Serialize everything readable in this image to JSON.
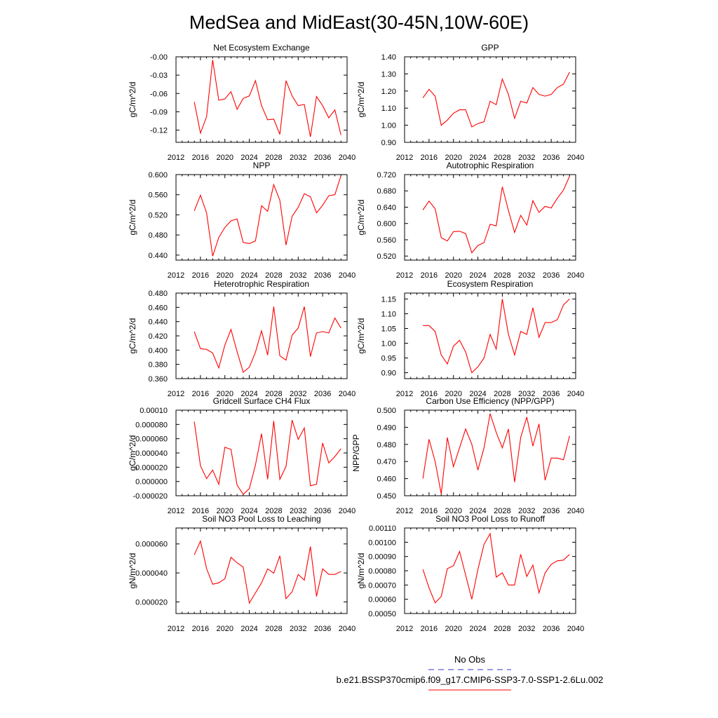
{
  "page_title": "MedSea and MidEast(30-45N,10W-60E)",
  "colors": {
    "series": "#ff0000",
    "obs": "#3333cc",
    "axis": "#000000"
  },
  "legend": {
    "obs_label": "No Obs",
    "model_label": "b.e21.BSSP370cmip6.f09_g17.CMIP6-SSP3-7.0-SSP1-2.6Lu.002"
  },
  "chart_data": [
    {
      "type": "line",
      "title": "Net Ecosystem Exchange",
      "ylabel": "gC/m^2/d",
      "xlim": [
        2012,
        2040
      ],
      "xticks": [
        2012,
        2016,
        2020,
        2024,
        2028,
        2032,
        2036,
        2040
      ],
      "xtick_labels": [
        "2012",
        "2016",
        "2020",
        "2024",
        "2028",
        "2032",
        "2036",
        "2040"
      ],
      "ylim": [
        -0.14,
        0.0
      ],
      "yticks": [
        -0.12,
        -0.09,
        -0.06,
        -0.03,
        0.0
      ],
      "ytick_labels": [
        "-0.12",
        "-0.09",
        "-0.06",
        "-0.03",
        "-0.00"
      ],
      "x": [
        2015,
        2016,
        2017,
        2018,
        2019,
        2020,
        2021,
        2022,
        2023,
        2024,
        2025,
        2026,
        2027,
        2028,
        2029,
        2030,
        2031,
        2032,
        2033,
        2034,
        2035,
        2036,
        2037,
        2038,
        2039
      ],
      "y": [
        -0.074,
        -0.125,
        -0.098,
        -0.005,
        -0.071,
        -0.069,
        -0.057,
        -0.086,
        -0.068,
        -0.064,
        -0.039,
        -0.08,
        -0.103,
        -0.102,
        -0.127,
        -0.039,
        -0.064,
        -0.08,
        -0.078,
        -0.131,
        -0.065,
        -0.08,
        -0.1,
        -0.087,
        -0.128
      ]
    },
    {
      "type": "line",
      "title": "GPP",
      "ylabel": "gC/m^2/d",
      "xlim": [
        2012,
        2040
      ],
      "xticks": [
        2012,
        2016,
        2020,
        2024,
        2028,
        2032,
        2036,
        2040
      ],
      "xtick_labels": [
        "2012",
        "2016",
        "2020",
        "2024",
        "2028",
        "2032",
        "2036",
        "2040"
      ],
      "ylim": [
        0.9,
        1.4
      ],
      "yticks": [
        0.9,
        1.0,
        1.1,
        1.2,
        1.3,
        1.4
      ],
      "ytick_labels": [
        "0.90",
        "1.00",
        "1.10",
        "1.20",
        "1.30",
        "1.40"
      ],
      "x": [
        2015,
        2016,
        2017,
        2018,
        2019,
        2020,
        2021,
        2022,
        2023,
        2024,
        2025,
        2026,
        2027,
        2028,
        2029,
        2030,
        2031,
        2032,
        2033,
        2034,
        2035,
        2036,
        2037,
        2038,
        2039
      ],
      "y": [
        1.16,
        1.21,
        1.17,
        1.0,
        1.03,
        1.07,
        1.09,
        1.09,
        0.99,
        1.01,
        1.02,
        1.14,
        1.12,
        1.27,
        1.18,
        1.04,
        1.14,
        1.13,
        1.22,
        1.18,
        1.17,
        1.18,
        1.22,
        1.24,
        1.31
      ]
    },
    {
      "type": "line",
      "title": "NPP",
      "ylabel": "gC/m^2/d",
      "xlim": [
        2012,
        2040
      ],
      "xticks": [
        2012,
        2016,
        2020,
        2024,
        2028,
        2032,
        2036,
        2040
      ],
      "xtick_labels": [
        "2012",
        "2016",
        "2020",
        "2024",
        "2028",
        "2032",
        "2036",
        "2040"
      ],
      "ylim": [
        0.43,
        0.6
      ],
      "yticks": [
        0.44,
        0.48,
        0.52,
        0.56,
        0.6
      ],
      "ytick_labels": [
        "0.440",
        "0.480",
        "0.520",
        "0.560",
        "0.600"
      ],
      "x": [
        2015,
        2016,
        2017,
        2018,
        2019,
        2020,
        2021,
        2022,
        2023,
        2024,
        2025,
        2026,
        2027,
        2028,
        2029,
        2030,
        2031,
        2032,
        2033,
        2034,
        2035,
        2036,
        2037,
        2038,
        2039
      ],
      "y": [
        0.528,
        0.559,
        0.524,
        0.438,
        0.475,
        0.495,
        0.508,
        0.512,
        0.465,
        0.463,
        0.468,
        0.538,
        0.527,
        0.58,
        0.549,
        0.46,
        0.517,
        0.535,
        0.562,
        0.556,
        0.524,
        0.539,
        0.558,
        0.56,
        0.598
      ]
    },
    {
      "type": "line",
      "title": "Autotrophic Respiration",
      "ylabel": "gC/m^2/d",
      "xlim": [
        2012,
        2040
      ],
      "xticks": [
        2012,
        2016,
        2020,
        2024,
        2028,
        2032,
        2036,
        2040
      ],
      "xtick_labels": [
        "2012",
        "2016",
        "2020",
        "2024",
        "2028",
        "2032",
        "2036",
        "2040"
      ],
      "ylim": [
        0.51,
        0.72
      ],
      "yticks": [
        0.52,
        0.56,
        0.6,
        0.64,
        0.68,
        0.72
      ],
      "ytick_labels": [
        "0.520",
        "0.560",
        "0.600",
        "0.640",
        "0.680",
        "0.720"
      ],
      "x": [
        2015,
        2016,
        2017,
        2018,
        2019,
        2020,
        2021,
        2022,
        2023,
        2024,
        2025,
        2026,
        2027,
        2028,
        2029,
        2030,
        2031,
        2032,
        2033,
        2034,
        2035,
        2036,
        2037,
        2038,
        2039
      ],
      "y": [
        0.633,
        0.655,
        0.636,
        0.565,
        0.557,
        0.58,
        0.581,
        0.575,
        0.528,
        0.546,
        0.553,
        0.598,
        0.594,
        0.69,
        0.632,
        0.578,
        0.62,
        0.596,
        0.656,
        0.627,
        0.642,
        0.638,
        0.662,
        0.682,
        0.716
      ]
    },
    {
      "type": "line",
      "title": "Heterotrophic Respiration",
      "ylabel": "gC/m^2/d",
      "xlim": [
        2012,
        2040
      ],
      "xticks": [
        2012,
        2016,
        2020,
        2024,
        2028,
        2032,
        2036,
        2040
      ],
      "xtick_labels": [
        "2012",
        "2016",
        "2020",
        "2024",
        "2028",
        "2032",
        "2036",
        "2040"
      ],
      "ylim": [
        0.36,
        0.48
      ],
      "yticks": [
        0.36,
        0.38,
        0.4,
        0.42,
        0.44,
        0.46,
        0.48
      ],
      "ytick_labels": [
        "0.360",
        "0.380",
        "0.400",
        "0.420",
        "0.440",
        "0.460",
        "0.480"
      ],
      "x": [
        2015,
        2016,
        2017,
        2018,
        2019,
        2020,
        2021,
        2022,
        2023,
        2024,
        2025,
        2026,
        2027,
        2028,
        2029,
        2030,
        2031,
        2032,
        2033,
        2034,
        2035,
        2036,
        2037,
        2038,
        2039
      ],
      "y": [
        0.426,
        0.402,
        0.401,
        0.396,
        0.375,
        0.407,
        0.429,
        0.398,
        0.369,
        0.376,
        0.397,
        0.427,
        0.393,
        0.461,
        0.392,
        0.386,
        0.421,
        0.431,
        0.461,
        0.391,
        0.424,
        0.426,
        0.424,
        0.445,
        0.431
      ]
    },
    {
      "type": "line",
      "title": "Ecosystem Respiration",
      "ylabel": "gC/m^2/d",
      "xlim": [
        2012,
        2040
      ],
      "xticks": [
        2012,
        2016,
        2020,
        2024,
        2028,
        2032,
        2036,
        2040
      ],
      "xtick_labels": [
        "2012",
        "2016",
        "2020",
        "2024",
        "2028",
        "2032",
        "2036",
        "2040"
      ],
      "ylim": [
        0.88,
        1.17
      ],
      "yticks": [
        0.9,
        0.95,
        1.0,
        1.05,
        1.1,
        1.15
      ],
      "ytick_labels": [
        "0.90",
        "0.95",
        "1.00",
        "1.05",
        "1.10",
        "1.15"
      ],
      "x": [
        2015,
        2016,
        2017,
        2018,
        2019,
        2020,
        2021,
        2022,
        2023,
        2024,
        2025,
        2026,
        2027,
        2028,
        2029,
        2030,
        2031,
        2032,
        2033,
        2034,
        2035,
        2036,
        2037,
        2038,
        2039
      ],
      "y": [
        1.06,
        1.06,
        1.04,
        0.96,
        0.93,
        0.99,
        1.01,
        0.97,
        0.9,
        0.92,
        0.95,
        1.03,
        0.98,
        1.15,
        1.03,
        0.96,
        1.04,
        1.03,
        1.12,
        1.02,
        1.07,
        1.07,
        1.08,
        1.13,
        1.15
      ]
    },
    {
      "type": "line",
      "title": "Gridcell Surface CH4 Flux",
      "ylabel": "gC/m^2/d",
      "xlim": [
        2012,
        2040
      ],
      "xticks": [
        2012,
        2016,
        2020,
        2024,
        2028,
        2032,
        2036,
        2040
      ],
      "xtick_labels": [
        "2012",
        "2016",
        "2020",
        "2024",
        "2028",
        "2032",
        "2036",
        "2040"
      ],
      "ylim": [
        -2e-05,
        0.0001
      ],
      "yticks": [
        -2e-05,
        0.0,
        2e-05,
        4e-05,
        6e-05,
        8e-05,
        0.0001
      ],
      "ytick_labels": [
        "-0.000020",
        "0.000000",
        "0.000020",
        "0.000040",
        "0.000060",
        "0.000080",
        "0.00010"
      ],
      "x": [
        2015,
        2016,
        2017,
        2018,
        2019,
        2020,
        2021,
        2022,
        2023,
        2024,
        2025,
        2026,
        2027,
        2028,
        2029,
        2030,
        2031,
        2032,
        2033,
        2034,
        2035,
        2036,
        2037,
        2038,
        2039
      ],
      "y": [
        8.4e-05,
        2.2e-05,
        4e-06,
        1.6e-05,
        -4e-06,
        4.8e-05,
        4.5e-05,
        -5e-06,
        -1.8e-05,
        -1e-05,
        2.3e-05,
        6.7e-05,
        3e-06,
        8.5e-05,
        3e-06,
        2.1e-05,
        8.6e-05,
        5.9e-05,
        7.5e-05,
        -6e-06,
        -4e-06,
        5.4e-05,
        2.6e-05,
        3.5e-05,
        4.6e-05
      ]
    },
    {
      "type": "line",
      "title": "Carbon Use Efficiency (NPP/GPP)",
      "ylabel": "NPP/GPP",
      "xlim": [
        2012,
        2040
      ],
      "xticks": [
        2012,
        2016,
        2020,
        2024,
        2028,
        2032,
        2036,
        2040
      ],
      "xtick_labels": [
        "2012",
        "2016",
        "2020",
        "2024",
        "2028",
        "2032",
        "2036",
        "2040"
      ],
      "ylim": [
        0.45,
        0.5
      ],
      "yticks": [
        0.45,
        0.46,
        0.47,
        0.48,
        0.49,
        0.5
      ],
      "ytick_labels": [
        "0.450",
        "0.460",
        "0.470",
        "0.480",
        "0.490",
        "0.500"
      ],
      "x": [
        2015,
        2016,
        2017,
        2018,
        2019,
        2020,
        2021,
        2022,
        2023,
        2024,
        2025,
        2026,
        2027,
        2028,
        2029,
        2030,
        2031,
        2032,
        2033,
        2034,
        2035,
        2036,
        2037,
        2038,
        2039
      ],
      "y": [
        0.46,
        0.483,
        0.47,
        0.451,
        0.484,
        0.467,
        0.478,
        0.489,
        0.48,
        0.465,
        0.478,
        0.498,
        0.487,
        0.478,
        0.489,
        0.458,
        0.484,
        0.496,
        0.479,
        0.492,
        0.459,
        0.472,
        0.472,
        0.471,
        0.485
      ]
    },
    {
      "type": "line",
      "title": "Soil NO3 Pool Loss to Leaching",
      "ylabel": "gN/m^2/d",
      "xlim": [
        2012,
        2040
      ],
      "xticks": [
        2012,
        2016,
        2020,
        2024,
        2028,
        2032,
        2036,
        2040
      ],
      "xtick_labels": [
        "2012",
        "2016",
        "2020",
        "2024",
        "2028",
        "2032",
        "2036",
        "2040"
      ],
      "ylim": [
        1.2e-05,
        7.1e-05
      ],
      "yticks": [
        2e-05,
        4e-05,
        6e-05
      ],
      "ytick_labels": [
        "0.000020",
        "0.000040",
        "0.000060"
      ],
      "x": [
        2015,
        2016,
        2017,
        2018,
        2019,
        2020,
        2021,
        2022,
        2023,
        2024,
        2025,
        2026,
        2027,
        2028,
        2029,
        2030,
        2031,
        2032,
        2033,
        2034,
        2035,
        2036,
        2037,
        2038,
        2039
      ],
      "y": [
        5.25e-05,
        6.2e-05,
        4.3e-05,
        3.22e-05,
        3.32e-05,
        3.6e-05,
        5.08e-05,
        4.7e-05,
        4.4e-05,
        1.92e-05,
        2.62e-05,
        3.32e-05,
        4.28e-05,
        3.98e-05,
        5.18e-05,
        2.22e-05,
        2.7e-05,
        3.9e-05,
        3.5e-05,
        5.82e-05,
        2.38e-05,
        4.28e-05,
        3.9e-05,
        3.9e-05,
        4.1e-05
      ]
    },
    {
      "type": "line",
      "title": "Soil NO3 Pool Loss to Runoff",
      "ylabel": "gN/m^2/d",
      "xlim": [
        2012,
        2040
      ],
      "xticks": [
        2012,
        2016,
        2020,
        2024,
        2028,
        2032,
        2036,
        2040
      ],
      "xtick_labels": [
        "2012",
        "2016",
        "2020",
        "2024",
        "2028",
        "2032",
        "2036",
        "2040"
      ],
      "ylim": [
        0.0005,
        0.0011
      ],
      "yticks": [
        0.0005,
        0.0006,
        0.0007,
        0.0008,
        0.0009,
        0.001,
        0.0011
      ],
      "ytick_labels": [
        "0.00050",
        "0.00060",
        "0.00070",
        "0.00080",
        "0.00090",
        "0.00100",
        "0.00110"
      ],
      "x": [
        2015,
        2016,
        2017,
        2018,
        2019,
        2020,
        2021,
        2022,
        2023,
        2024,
        2025,
        2026,
        2027,
        2028,
        2029,
        2030,
        2031,
        2032,
        2033,
        2034,
        2035,
        2036,
        2037,
        2038,
        2039
      ],
      "y": [
        0.00081,
        0.00068,
        0.000575,
        0.00062,
        0.000815,
        0.000835,
        0.000935,
        0.00077,
        0.0006,
        0.00081,
        0.000985,
        0.00106,
        0.000755,
        0.000785,
        0.0007,
        0.0007,
        0.000915,
        0.00076,
        0.00084,
        0.000645,
        0.000785,
        0.000845,
        0.00087,
        0.000875,
        0.000915
      ]
    }
  ]
}
